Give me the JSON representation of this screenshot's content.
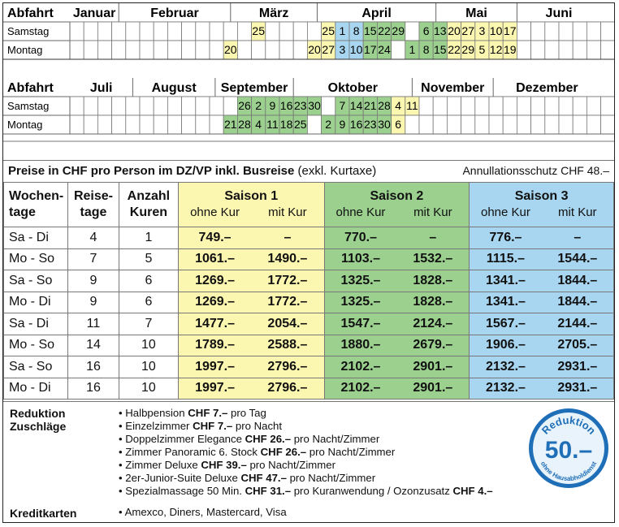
{
  "calendar": {
    "abfahrt_label": "Abfahrt",
    "row_labels": [
      "Samstag",
      "Montag"
    ],
    "months_row1": [
      "Januar",
      "Februar",
      "März",
      "April",
      "Mai",
      "Juni"
    ],
    "months_row2": [
      "Juli",
      "August",
      "September",
      "Oktober",
      "November",
      "Dezember"
    ],
    "half1": {
      "samstag": [
        {
          "col": 14,
          "d": "25"
        },
        {
          "col": 19,
          "d": "25"
        },
        {
          "col": 20,
          "d": "1"
        },
        {
          "col": 21,
          "d": "8"
        },
        {
          "col": 22,
          "d": "15"
        },
        {
          "col": 23,
          "d": "22"
        },
        {
          "col": 24,
          "d": "29"
        },
        {
          "col": 26,
          "d": "6"
        },
        {
          "col": 27,
          "d": "13"
        },
        {
          "col": 28,
          "d": "20"
        },
        {
          "col": 29,
          "d": "27"
        },
        {
          "col": 30,
          "d": "3"
        },
        {
          "col": 31,
          "d": "10"
        },
        {
          "col": 32,
          "d": "17"
        }
      ],
      "montag": [
        {
          "col": 12,
          "d": "20"
        },
        {
          "col": 18,
          "d": "20"
        },
        {
          "col": 19,
          "d": "27"
        },
        {
          "col": 20,
          "d": "3"
        },
        {
          "col": 21,
          "d": "10"
        },
        {
          "col": 22,
          "d": "17"
        },
        {
          "col": 23,
          "d": "24"
        },
        {
          "col": 25,
          "d": "1"
        },
        {
          "col": 26,
          "d": "8"
        },
        {
          "col": 27,
          "d": "15"
        },
        {
          "col": 28,
          "d": "22"
        },
        {
          "col": 29,
          "d": "29"
        },
        {
          "col": 30,
          "d": "5"
        },
        {
          "col": 31,
          "d": "12"
        },
        {
          "col": 32,
          "d": "19"
        }
      ]
    },
    "half2": {
      "samstag": [
        {
          "col": 13,
          "d": "26"
        },
        {
          "col": 14,
          "d": "2"
        },
        {
          "col": 15,
          "d": "9"
        },
        {
          "col": 16,
          "d": "16"
        },
        {
          "col": 17,
          "d": "23"
        },
        {
          "col": 18,
          "d": "30"
        },
        {
          "col": 20,
          "d": "7"
        },
        {
          "col": 21,
          "d": "14"
        },
        {
          "col": 22,
          "d": "21"
        },
        {
          "col": 23,
          "d": "28"
        },
        {
          "col": 24,
          "d": "4"
        },
        {
          "col": 25,
          "d": "11"
        }
      ],
      "montag": [
        {
          "col": 12,
          "d": "21"
        },
        {
          "col": 13,
          "d": "28"
        },
        {
          "col": 14,
          "d": "4"
        },
        {
          "col": 15,
          "d": "11"
        },
        {
          "col": 16,
          "d": "18"
        },
        {
          "col": 17,
          "d": "25"
        },
        {
          "col": 19,
          "d": "2"
        },
        {
          "col": 20,
          "d": "9"
        },
        {
          "col": 21,
          "d": "16"
        },
        {
          "col": 22,
          "d": "23"
        },
        {
          "col": 23,
          "d": "30"
        },
        {
          "col": 24,
          "d": "6"
        }
      ]
    }
  },
  "prices": {
    "heading_bold": "Preise in CHF pro Person im DZ/VP inkl. Busreise",
    "heading_normal": "(exkl. Kurtaxe)",
    "annullation": "Annullationsschutz CHF 48.–",
    "col_wochentage": "Wochen-\ntage",
    "col_reisetage": "Reise-\ntage",
    "col_kuren": "Anzahl\nKuren",
    "season1": "Saison 1",
    "season2": "Saison 2",
    "season3": "Saison 3",
    "ohne_kur": "ohne Kur",
    "mit_kur": "mit Kur",
    "rows": [
      {
        "tage": "Sa - Di",
        "reise": "4",
        "kuren": "1",
        "s1a": "749.–",
        "s1b": "–",
        "s2a": "770.–",
        "s2b": "–",
        "s3a": "776.–",
        "s3b": "–"
      },
      {
        "tage": "Mo - So",
        "reise": "7",
        "kuren": "5",
        "s1a": "1061.–",
        "s1b": "1490.–",
        "s2a": "1103.–",
        "s2b": "1532.–",
        "s3a": "1115.–",
        "s3b": "1544.–"
      },
      {
        "tage": "Sa - So",
        "reise": "9",
        "kuren": "6",
        "s1a": "1269.–",
        "s1b": "1772.–",
        "s2a": "1325.–",
        "s2b": "1828.–",
        "s3a": "1341.–",
        "s3b": "1844.–"
      },
      {
        "tage": "Mo - Di",
        "reise": "9",
        "kuren": "6",
        "s1a": "1269.–",
        "s1b": "1772.–",
        "s2a": "1325.–",
        "s2b": "1828.–",
        "s3a": "1341.–",
        "s3b": "1844.–"
      },
      {
        "tage": "Sa - Di",
        "reise": "11",
        "kuren": "7",
        "s1a": "1477.–",
        "s1b": "2054.–",
        "s2a": "1547.–",
        "s2b": "2124.–",
        "s3a": "1567.–",
        "s3b": "2144.–"
      },
      {
        "tage": "Mo - So",
        "reise": "14",
        "kuren": "10",
        "s1a": "1789.–",
        "s1b": "2588.–",
        "s2a": "1880.–",
        "s2b": "2679.–",
        "s3a": "1906.–",
        "s3b": "2705.–"
      },
      {
        "tage": "Sa - So",
        "reise": "16",
        "kuren": "10",
        "s1a": "1997.–",
        "s1b": "2796.–",
        "s2a": "2102.–",
        "s2b": "2901.–",
        "s3a": "2132.–",
        "s3b": "2931.–"
      },
      {
        "tage": "Mo - Di",
        "reise": "16",
        "kuren": "10",
        "s1a": "1997.–",
        "s1b": "2796.–",
        "s2a": "2102.–",
        "s2b": "2901.–",
        "s3a": "2132.–",
        "s3b": "2931.–"
      }
    ]
  },
  "extras": {
    "label_reduktion": "Reduktion",
    "label_zuschlaege": "Zuschläge",
    "label_kreditkarten": "Kreditkarten",
    "items": [
      {
        "pre": "Halbpension ",
        "b": "CHF 7.–",
        "post": " pro Tag",
        "b2": ""
      },
      {
        "pre": "Einzelzimmer ",
        "b": "CHF 7.–",
        "post": " pro Nacht",
        "b2": ""
      },
      {
        "pre": "Doppelzimmer Elegance ",
        "b": "CHF 26.–",
        "post": " pro Nacht/Zimmer",
        "b2": ""
      },
      {
        "pre": "Zimmer Panoramic 6. Stock ",
        "b": "CHF 26.–",
        "post": " pro Nacht/Zimmer",
        "b2": ""
      },
      {
        "pre": "Zimmer Deluxe ",
        "b": "CHF 39.–",
        "post": " pro Nacht/Zimmer",
        "b2": ""
      },
      {
        "pre": "2er-Junior-Suite Deluxe ",
        "b": "CHF 47.–",
        "post": " pro Nacht/Zimmer",
        "b2": ""
      },
      {
        "pre": "Spezialmassage 50 Min. ",
        "b": "CHF 31.–",
        "post": " pro Kuranwendung / Ozonzusatz ",
        "b2": "CHF 4.–"
      }
    ],
    "kreditkarten": "Amexco, Diners, Mastercard, Visa"
  },
  "badge": {
    "top": "Reduktion",
    "value": "50.–",
    "bottom1": "ohne",
    "bottom2": "Hausabholdienst"
  },
  "colors": {
    "season1": "#fcf7b0",
    "season2": "#9bd08f",
    "season3": "#a8d5ef",
    "badge": "#1f6fb8"
  }
}
